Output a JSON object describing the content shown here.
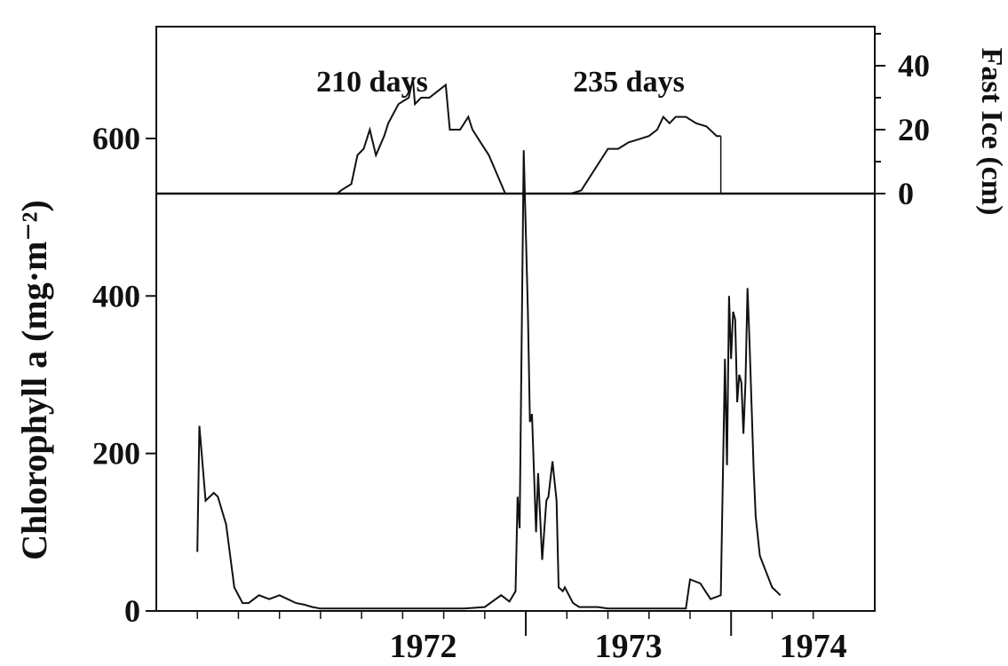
{
  "chart_data": [
    {
      "type": "line",
      "panel": "fast-ice",
      "ylabel": "Fast Ice (cm)",
      "y_axis_side": "right",
      "ylim": [
        0,
        50
      ],
      "yticks": [
        0,
        20,
        40
      ],
      "annotations": [
        "210 days",
        "235 days"
      ],
      "series": [
        {
          "x": [
            1972.0,
            1972.08,
            1972.1,
            1972.15,
            1972.18,
            1972.21,
            1972.24,
            1972.27,
            1972.31,
            1972.33,
            1972.38,
            1972.43,
            1972.45,
            1972.46,
            1972.49,
            1972.53,
            1972.57,
            1972.61,
            1972.63,
            1972.68,
            1972.72,
            1972.74,
            1972.76,
            1972.78,
            1972.82,
            1972.86,
            1972.9,
            1972.93,
            1972.96,
            1972.99,
            1973.02
          ],
          "y": [
            0,
            0,
            1,
            3,
            12,
            14,
            20,
            12,
            18,
            22,
            28,
            30,
            36,
            28,
            30,
            30,
            32,
            34,
            20,
            20,
            24,
            20,
            18,
            16,
            12,
            6,
            0,
            0,
            0,
            0,
            0
          ]
        },
        {
          "x": [
            1973.22,
            1973.27,
            1973.32,
            1973.36,
            1973.4,
            1973.45,
            1973.5,
            1973.55,
            1973.6,
            1973.64,
            1973.67,
            1973.7,
            1973.73,
            1973.78,
            1973.83,
            1973.88,
            1973.93,
            1973.95
          ],
          "y": [
            0,
            1,
            6,
            10,
            14,
            14,
            16,
            17,
            18,
            20,
            24,
            22,
            24,
            24,
            22,
            21,
            18,
            18
          ]
        }
      ]
    },
    {
      "type": "line",
      "panel": "chlorophyll",
      "ylabel": "Chlorophyll a (mg·m⁻²)",
      "ylim": [
        0,
        750
      ],
      "yticks": [
        0,
        200,
        400,
        600
      ],
      "xlim": [
        1971.2,
        1974.7
      ],
      "x_tick_labels": [
        "1972",
        "1973",
        "1974"
      ],
      "x_tick_label_positions": [
        1972.5,
        1973.5,
        1974.4
      ],
      "x_major_ticks": [
        1973.0,
        1974.0
      ],
      "x_minor_ticks": [
        1971.4,
        1971.6,
        1971.8,
        1972.0,
        1972.2,
        1972.4,
        1972.6,
        1972.8,
        1973.2,
        1973.4,
        1973.6,
        1973.8,
        1974.2,
        1974.4
      ],
      "series": [
        {
          "x": [
            1971.4,
            1971.41,
            1971.44,
            1971.48,
            1971.5,
            1971.54,
            1971.58,
            1971.62,
            1971.65,
            1971.7,
            1971.75,
            1971.8,
            1971.84,
            1971.88,
            1971.92,
            1971.96,
            1972.0,
            1972.1,
            1972.2,
            1972.3,
            1972.5,
            1972.7,
            1972.8,
            1972.88,
            1972.92,
            1972.95,
            1972.96,
            1972.97,
            1972.99,
            1973.0,
            1973.01,
            1973.02,
            1973.03,
            1973.05,
            1973.06,
            1973.08,
            1973.1,
            1973.11,
            1973.13,
            1973.15,
            1973.16,
            1973.18,
            1973.19,
            1973.21,
            1973.23,
            1973.26,
            1973.3,
            1973.35,
            1973.4,
            1973.5,
            1973.6,
            1973.7,
            1973.78,
            1973.8,
            1973.85,
            1973.9,
            1973.95,
            1973.97,
            1973.98,
            1973.99,
            1974.0,
            1974.01,
            1974.02,
            1974.03,
            1974.04,
            1974.05,
            1974.06,
            1974.07,
            1974.08,
            1974.09,
            1974.1,
            1974.11,
            1974.12,
            1974.14,
            1974.17,
            1974.2,
            1974.24
          ],
          "y": [
            75,
            235,
            140,
            150,
            145,
            110,
            30,
            10,
            10,
            20,
            15,
            20,
            15,
            10,
            8,
            5,
            3,
            3,
            3,
            3,
            3,
            3,
            5,
            20,
            12,
            25,
            145,
            105,
            585,
            480,
            380,
            240,
            250,
            100,
            175,
            65,
            140,
            145,
            190,
            140,
            30,
            25,
            30,
            20,
            10,
            5,
            5,
            5,
            3,
            3,
            3,
            3,
            3,
            40,
            35,
            15,
            20,
            320,
            185,
            400,
            320,
            380,
            370,
            265,
            300,
            290,
            225,
            290,
            410,
            340,
            260,
            180,
            120,
            70,
            50,
            30,
            20
          ]
        }
      ]
    }
  ]
}
